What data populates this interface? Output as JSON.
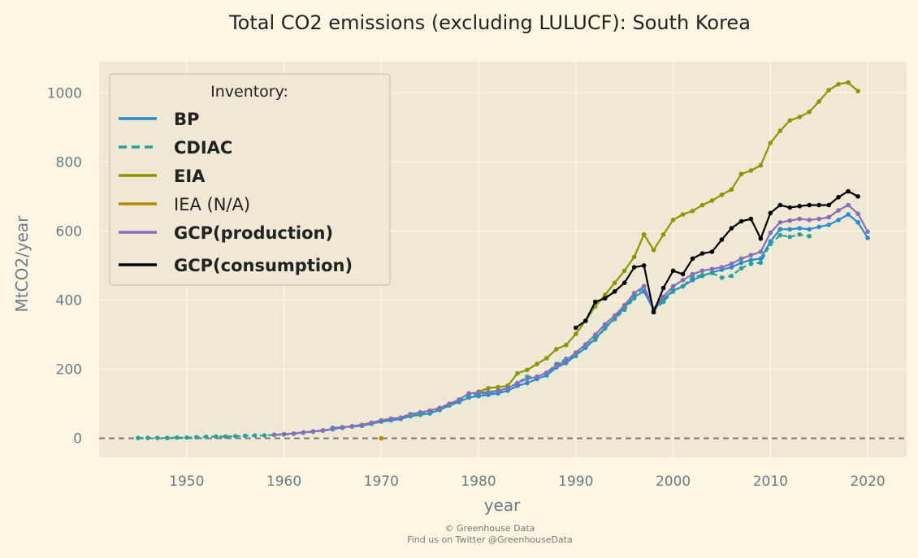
{
  "chart_data": {
    "type": "line",
    "title": "Total CO2 emissions (excluding LULUCF): South Korea",
    "xlabel": "year",
    "ylabel": "MtCO2/year",
    "xlim": [
      1941,
      2024
    ],
    "ylim": [
      -55,
      1090
    ],
    "xticks": [
      1950,
      1960,
      1970,
      1980,
      1990,
      2000,
      2010,
      2020
    ],
    "yticks": [
      0,
      200,
      400,
      600,
      800,
      1000
    ],
    "grid": true,
    "legend": {
      "title": "Inventory:",
      "placement": "top-left"
    },
    "zero_line": true,
    "series": [
      {
        "name": "BP",
        "color": "#268bd2",
        "style": "solid",
        "bold": true,
        "x": [
          1965,
          1966,
          1967,
          1968,
          1969,
          1970,
          1971,
          1972,
          1973,
          1974,
          1975,
          1976,
          1977,
          1978,
          1979,
          1980,
          1981,
          1982,
          1983,
          1984,
          1985,
          1986,
          1987,
          1988,
          1989,
          1990,
          1991,
          1992,
          1993,
          1994,
          1995,
          1996,
          1997,
          1998,
          1999,
          2000,
          2001,
          2002,
          2003,
          2004,
          2005,
          2006,
          2007,
          2008,
          2009,
          2010,
          2011,
          2012,
          2013,
          2014,
          2015,
          2016,
          2017,
          2018,
          2019,
          2020
        ],
        "y": [
          30,
          32,
          34,
          36,
          42,
          48,
          52,
          56,
          64,
          68,
          72,
          82,
          95,
          105,
          118,
          122,
          126,
          130,
          138,
          152,
          160,
          172,
          182,
          205,
          218,
          240,
          262,
          288,
          320,
          348,
          378,
          410,
          425,
          372,
          402,
          428,
          440,
          458,
          470,
          480,
          488,
          495,
          508,
          516,
          520,
          570,
          605,
          605,
          608,
          605,
          612,
          618,
          632,
          648,
          625,
          580
        ]
      },
      {
        "name": "CDIAC",
        "color": "#2aa198",
        "style": "dashed",
        "bold": true,
        "x": [
          1945,
          1946,
          1947,
          1948,
          1949,
          1950,
          1951,
          1952,
          1953,
          1954,
          1955,
          1956,
          1957,
          1958,
          1959,
          1960,
          1961,
          1962,
          1963,
          1964,
          1965,
          1966,
          1967,
          1968,
          1969,
          1970,
          1971,
          1972,
          1973,
          1974,
          1975,
          1976,
          1977,
          1978,
          1979,
          1980,
          1981,
          1982,
          1983,
          1984,
          1985,
          1986,
          1987,
          1988,
          1989,
          1990,
          1991,
          1992,
          1993,
          1994,
          1995,
          1996,
          1997,
          1998,
          1999,
          2000,
          2001,
          2002,
          2003,
          2004,
          2005,
          2006,
          2007,
          2008,
          2009,
          2010,
          2011,
          2012,
          2013,
          2014
        ],
        "y": [
          1,
          1,
          1,
          1,
          2,
          2,
          3,
          4,
          5,
          5,
          6,
          7,
          8,
          8,
          10,
          11,
          13,
          16,
          19,
          22,
          26,
          30,
          34,
          38,
          44,
          50,
          55,
          58,
          66,
          70,
          75,
          85,
          98,
          110,
          125,
          128,
          132,
          135,
          145,
          160,
          178,
          178,
          190,
          215,
          230,
          238,
          270,
          285,
          318,
          345,
          372,
          405,
          440,
          370,
          395,
          425,
          440,
          468,
          472,
          478,
          465,
          470,
          492,
          505,
          508,
          562,
          588,
          583,
          590,
          585
        ]
      },
      {
        "name": "EIA",
        "color": "#859900",
        "style": "solid",
        "bold": true,
        "x": [
          1980,
          1981,
          1982,
          1983,
          1984,
          1985,
          1986,
          1987,
          1988,
          1989,
          1990,
          1991,
          1992,
          1993,
          1994,
          1995,
          1996,
          1997,
          1998,
          1999,
          2000,
          2001,
          2002,
          2003,
          2004,
          2005,
          2006,
          2007,
          2008,
          2009,
          2010,
          2011,
          2012,
          2013,
          2014,
          2015,
          2016,
          2017,
          2018,
          2019
        ],
        "y": [
          135,
          145,
          148,
          152,
          188,
          198,
          215,
          232,
          258,
          270,
          302,
          340,
          382,
          415,
          450,
          485,
          525,
          590,
          545,
          590,
          632,
          648,
          658,
          675,
          688,
          705,
          720,
          765,
          775,
          790,
          855,
          890,
          920,
          930,
          945,
          975,
          1008,
          1025,
          1030,
          1005
        ]
      },
      {
        "name": "IEA (N/A)",
        "color": "#b58900",
        "style": "solid",
        "bold": false,
        "x": [
          1970
        ],
        "y": [
          0
        ]
      },
      {
        "name": "GCP(production)",
        "color": "#8470b8",
        "style": "solid",
        "bold": true,
        "x": [
          1959,
          1960,
          1961,
          1962,
          1963,
          1964,
          1965,
          1966,
          1967,
          1968,
          1969,
          1970,
          1971,
          1972,
          1973,
          1974,
          1975,
          1976,
          1977,
          1978,
          1979,
          1980,
          1981,
          1982,
          1983,
          1984,
          1985,
          1986,
          1987,
          1988,
          1989,
          1990,
          1991,
          1992,
          1993,
          1994,
          1995,
          1996,
          1997,
          1998,
          1999,
          2000,
          2001,
          2002,
          2003,
          2004,
          2005,
          2006,
          2007,
          2008,
          2009,
          2010,
          2011,
          2012,
          2013,
          2014,
          2015,
          2016,
          2017,
          2018,
          2019,
          2020
        ],
        "y": [
          10,
          12,
          14,
          17,
          20,
          23,
          27,
          31,
          35,
          39,
          45,
          52,
          57,
          60,
          70,
          75,
          80,
          88,
          100,
          112,
          130,
          132,
          134,
          138,
          145,
          160,
          172,
          178,
          190,
          210,
          225,
          248,
          272,
          300,
          330,
          355,
          385,
          420,
          440,
          375,
          410,
          440,
          458,
          475,
          485,
          490,
          495,
          505,
          520,
          530,
          540,
          595,
          625,
          630,
          635,
          632,
          635,
          640,
          660,
          675,
          650,
          598
        ]
      },
      {
        "name": "GCP(consumption)",
        "color": "#000000",
        "style": "solid",
        "bold": true,
        "x": [
          1990,
          1991,
          1992,
          1993,
          1994,
          1995,
          1996,
          1997,
          1998,
          1999,
          2000,
          2001,
          2002,
          2003,
          2004,
          2005,
          2006,
          2007,
          2008,
          2009,
          2010,
          2011,
          2012,
          2013,
          2014,
          2015,
          2016,
          2017,
          2018,
          2019
        ],
        "y": [
          320,
          340,
          395,
          405,
          425,
          450,
          495,
          500,
          365,
          435,
          485,
          475,
          520,
          535,
          540,
          575,
          608,
          628,
          635,
          578,
          652,
          675,
          668,
          672,
          675,
          675,
          675,
          698,
          715,
          700
        ]
      }
    ]
  },
  "footer": {
    "copyright": "© Greenhouse Data",
    "twitter": "Find us on Twitter @GreenhouseData"
  }
}
